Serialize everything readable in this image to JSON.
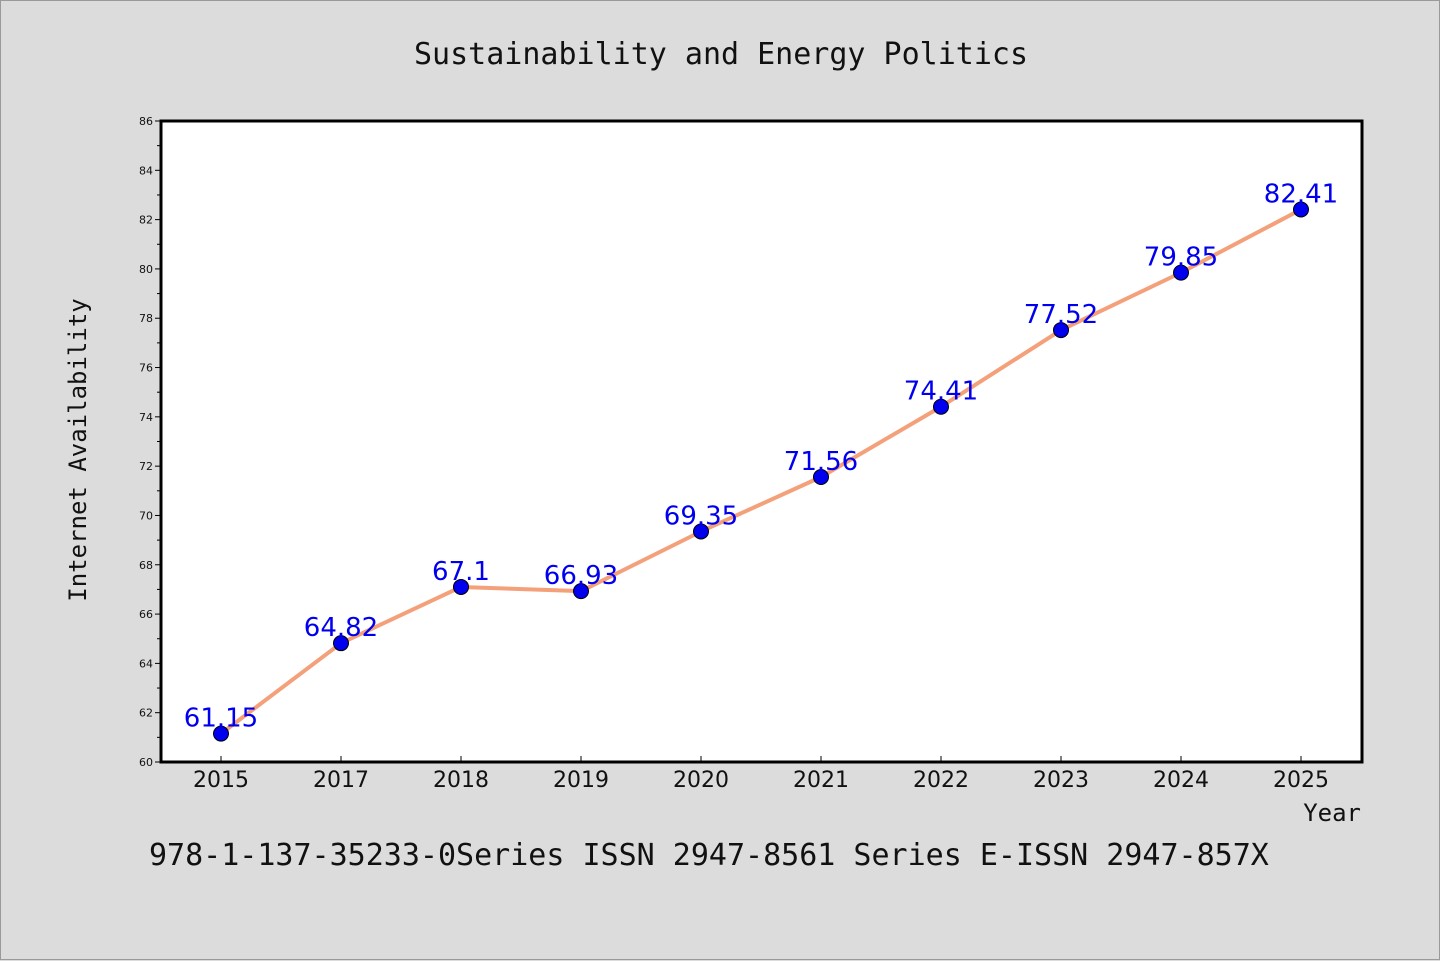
{
  "chart_data": {
    "type": "line",
    "title": "Sustainability and Energy Politics",
    "xlabel": "Year",
    "ylabel": "Internet Availability",
    "categories": [
      "2015",
      "2017",
      "2018",
      "2019",
      "2020",
      "2021",
      "2022",
      "2023",
      "2024",
      "2025"
    ],
    "series": [
      {
        "values": [
          61.15,
          64.82,
          67.1,
          66.93,
          69.35,
          71.56,
          74.41,
          77.52,
          79.85,
          82.41
        ],
        "data_labels": [
          "61.15",
          "64.82",
          "67.1",
          "66.93",
          "69.35",
          "71.56",
          "74.41",
          "77.52",
          "79.85",
          "82.41"
        ],
        "line_color": "#f4a07a",
        "marker_color": "#0000ee"
      }
    ],
    "ylim": [
      60,
      86
    ],
    "yticks": [
      "60",
      "62",
      "64",
      "66",
      "68",
      "70",
      "72",
      "74",
      "76",
      "78",
      "80",
      "82",
      "84",
      "86"
    ],
    "grid": false,
    "legend": "none"
  },
  "footer": "978-1-137-35233-0Series ISSN 2947-8561 Series E-ISSN 2947-857X",
  "colors": {
    "background": "#dcdcdc",
    "plot_background": "#ffffff",
    "label_color": "#0000ee"
  }
}
